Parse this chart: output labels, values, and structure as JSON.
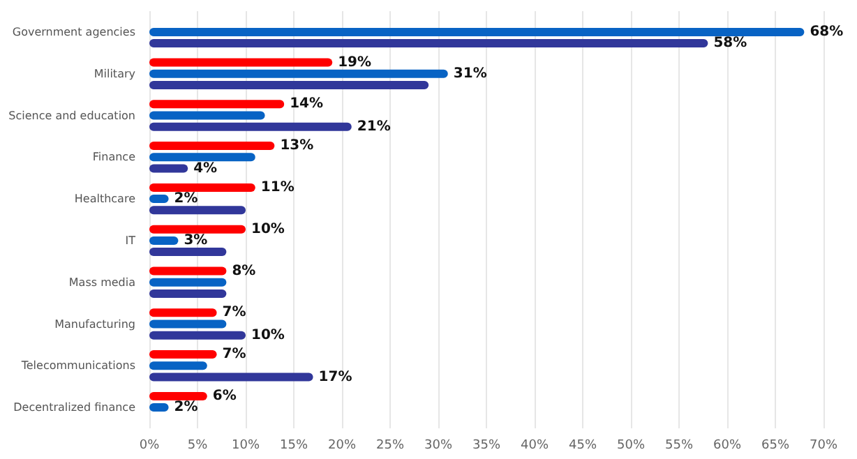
{
  "chart_data": {
    "type": "bar",
    "orientation": "horizontal",
    "categories": [
      "Government agencies",
      "Military",
      "Science and education",
      "Finance",
      "Healthcare",
      "IT",
      "Mass media",
      "Manufacturing",
      "Telecommunications",
      "Decentralized finance"
    ],
    "series": [
      {
        "color": "#ff0000",
        "values": [
          null,
          19,
          14,
          13,
          11,
          10,
          8,
          7,
          7,
          6
        ],
        "value_labels": [
          null,
          "19%",
          "14%",
          "13%",
          "11%",
          "10%",
          "8%",
          "7%",
          "7%",
          "6%"
        ]
      },
      {
        "color": "#0863c4",
        "values": [
          68,
          31,
          12,
          11,
          2,
          3,
          8,
          8,
          6,
          2
        ],
        "value_labels": [
          "68%",
          "31%",
          null,
          null,
          "2%",
          "3%",
          null,
          null,
          null,
          "2%"
        ]
      },
      {
        "color": "#31379a",
        "values": [
          58,
          29,
          21,
          4,
          10,
          8,
          8,
          10,
          17,
          null
        ],
        "value_labels": [
          "58%",
          null,
          "21%",
          "4%",
          null,
          null,
          null,
          "10%",
          "17%",
          null
        ]
      }
    ],
    "xlim": [
      0,
      70
    ],
    "xticks": [
      {
        "value": 0,
        "label": "0%"
      },
      {
        "value": 5,
        "label": "5%"
      },
      {
        "value": 10,
        "label": "10%"
      },
      {
        "value": 15,
        "label": "15%"
      },
      {
        "value": 20,
        "label": "20%"
      },
      {
        "value": 25,
        "label": "25%"
      },
      {
        "value": 30,
        "label": "30%"
      },
      {
        "value": 35,
        "label": "35%"
      },
      {
        "value": 40,
        "label": "40%"
      },
      {
        "value": 45,
        "label": "45%"
      },
      {
        "value": 50,
        "label": "50%"
      },
      {
        "value": 55,
        "label": "55%"
      },
      {
        "value": 60,
        "label": "60%"
      },
      {
        "value": 65,
        "label": "65%"
      },
      {
        "value": 70,
        "label": "70%"
      }
    ],
    "grid": "x"
  }
}
